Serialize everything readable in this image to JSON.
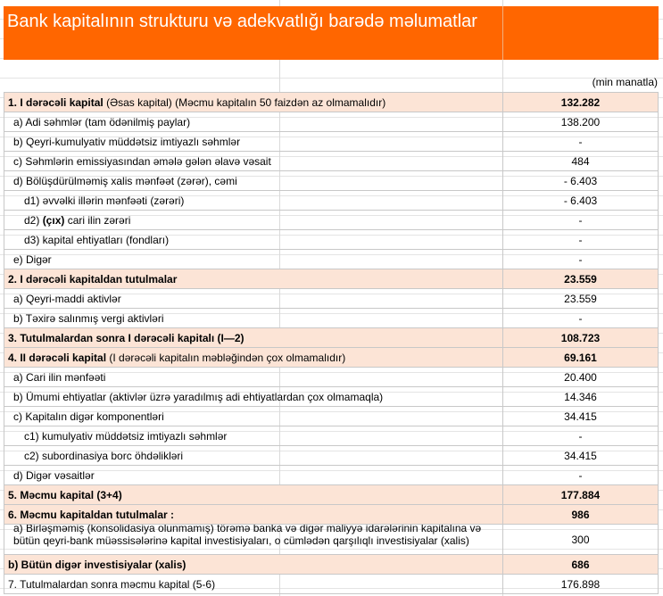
{
  "title": "Bank kapitalının strukturu və adekvatlığı barədə məlumatlar",
  "unit": "(min manatla)",
  "accent": "#ff6600",
  "highlight": "#fce4d6",
  "rows": [
    {
      "bold": "1. I dərəcəli kapital",
      "rest": " (Əsas kapital) (Məcmu kapitalın 50 faizdən  az olmamalıdır)",
      "value": "132.282"
    },
    {
      "label": "a) Adi səhmlər (tam ödənilmiş paylar)",
      "value": "138.200"
    },
    {
      "label": "b) Qeyri-kumulyativ müddətsiz imtiyazlı səhmlər",
      "value": "-"
    },
    {
      "label": "c) Səhmlərin emissiyasından əmələ gələn  əlavə vəsait",
      "value": "484"
    },
    {
      "label": "d)   Bölüşdürülməmiş xalis mənfəət (zərər), cəmi",
      "value": "- 6.403"
    },
    {
      "label": "d1) əvvəlki illərin mənfəəti (zərəri)",
      "value": "- 6.403"
    },
    {
      "pre": "d2) ",
      "bold": "(çıx)",
      "rest": " cari ilin zərəri",
      "value": "-"
    },
    {
      "label": "d3) kapital ehtiyatları (fondları)",
      "value": "-"
    },
    {
      "label": "e) Digər",
      "value": "-"
    },
    {
      "label": "2. I dərəcəli kapitaldan  tutulmalar",
      "value": "23.559"
    },
    {
      "label": "a) Qeyri-maddi aktivlər",
      "value": "23.559"
    },
    {
      "label": "b) Təxirə salınmış vergi aktivləri",
      "value": "-"
    },
    {
      "label": "3. Tutulmalardan  sonra I dərəcəli kapitalı (I—2)",
      "value": "108.723"
    },
    {
      "bold": "4. II dərəcəli  kapital",
      "rest": " (I dərəcəli  kapitalın  məbləğindən çox olmamalıdır)",
      "value": "69.161"
    },
    {
      "label": "a) Cari ilin mənfəəti",
      "value": "20.400"
    },
    {
      "label": "b) Ümumi ehtiyatlar (aktivlər üzrə yaradılmış adi ehtiyatlardan çox olmamaqla)",
      "value": "14.346"
    },
    {
      "label": "c)  Kapitalın digər komponentləri",
      "value": "34.415"
    },
    {
      "label": "c1) kumulyativ müddətsiz imtiyazlı səhmlər",
      "value": "-"
    },
    {
      "label": "c2) subordinasiya borc öhdəlikləri",
      "value": "34.415"
    },
    {
      "label": "d) Digər vəsaitlər",
      "value": "-"
    },
    {
      "label": "5. Məcmu kapital (3+4)",
      "value": "177.884"
    },
    {
      "label": "6. Məcmu kapitaldan tutulmalar :",
      "value": "986"
    },
    {
      "label": "a)   Birləşməmiş (konsolidasiya olunmamış) törəmə banka və digər maliyyə idarələrinin kapitalına və bütün qeyri-bank müəssisələrinə kapital investisiyaları, o cümlədən qarşılıqlı investisiyalar (xalis)",
      "value": "300"
    },
    {
      "label": "b)    Bütün digər investisiyalar (xalis)",
      "value": "686"
    },
    {
      "label": "7. Tutulmalardan  sonra məcmu kapital (5-6)",
      "value": "176.898"
    }
  ]
}
